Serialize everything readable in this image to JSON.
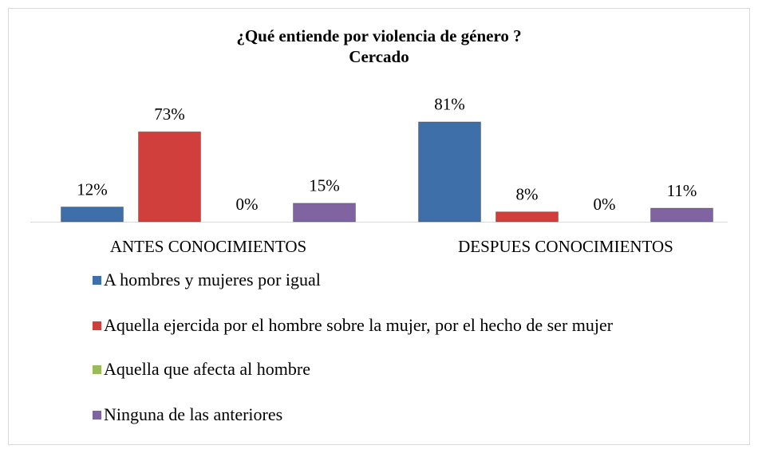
{
  "chart_data": {
    "type": "bar",
    "title": "¿Qué entiende por violencia de género ?",
    "subtitle": "Cercado",
    "categories": [
      "ANTES CONOCIMIENTOS",
      "DESPUES CONOCIMIENTOS"
    ],
    "series": [
      {
        "name": "A hombres y mujeres por igual",
        "color": "#3f6fa8",
        "values": [
          12,
          81
        ],
        "value_labels": [
          "12%",
          "81%"
        ]
      },
      {
        "name": "Aquella ejercida por el hombre sobre la mujer, por el hecho de ser mujer",
        "color": "#d13f3c",
        "values": [
          73,
          8
        ],
        "value_labels": [
          "73%",
          "8%"
        ]
      },
      {
        "name": "Aquella que afecta al hombre",
        "color": "#9bbb59",
        "values": [
          0,
          0
        ],
        "value_labels": [
          "0%",
          "0%"
        ]
      },
      {
        "name": "Ninguna de las anteriores",
        "color": "#8064a2",
        "values": [
          15,
          11
        ],
        "value_labels": [
          "15%",
          "11%"
        ]
      }
    ],
    "ylim": [
      0,
      90
    ]
  }
}
